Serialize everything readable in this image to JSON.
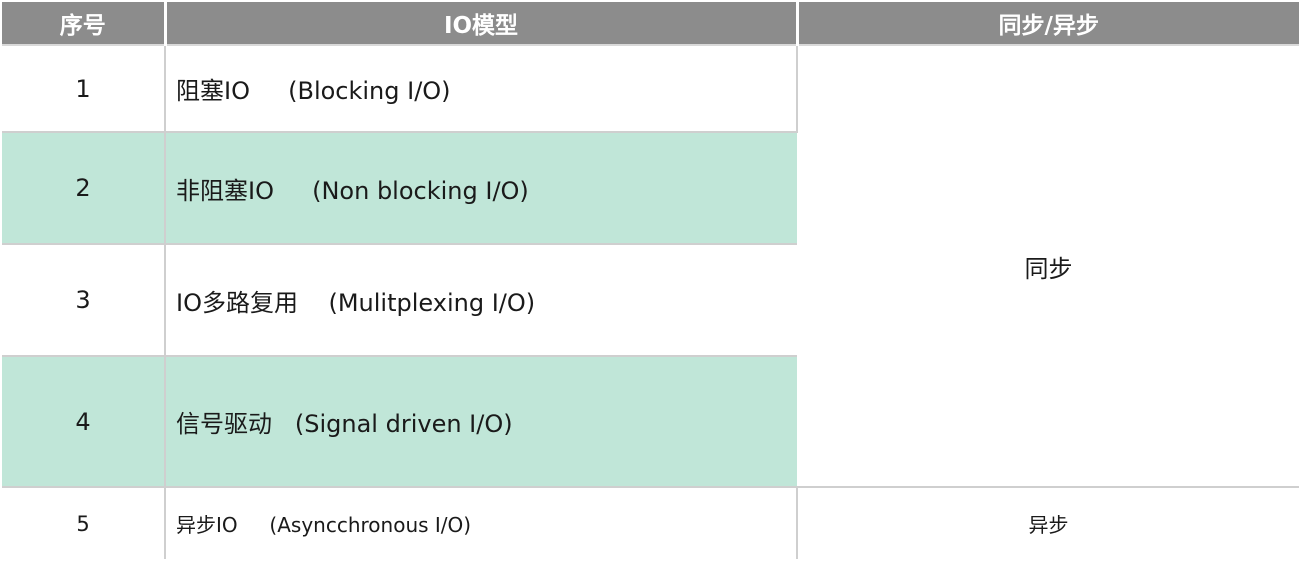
{
  "table": {
    "headers": [
      "序号",
      "IO模型",
      "同步/异步"
    ],
    "rows": [
      {
        "num": "1",
        "model": "阻塞IO     (Blocking I/O)"
      },
      {
        "num": "2",
        "model": "非阻塞IO     (Non blocking I/O)"
      },
      {
        "num": "3",
        "model": "IO多路复用    (Mulitplexing I/O)"
      },
      {
        "num": "4",
        "model": "信号驱动   (Signal driven I/O)"
      },
      {
        "num": "5",
        "model": "异步IO     (Asyncchronous I/O)"
      }
    ],
    "sync_label": "同步",
    "async_label": "异步"
  },
  "colors": {
    "header_bg": "#8c8c8c",
    "shaded_row_bg": "#c0e6d8"
  }
}
